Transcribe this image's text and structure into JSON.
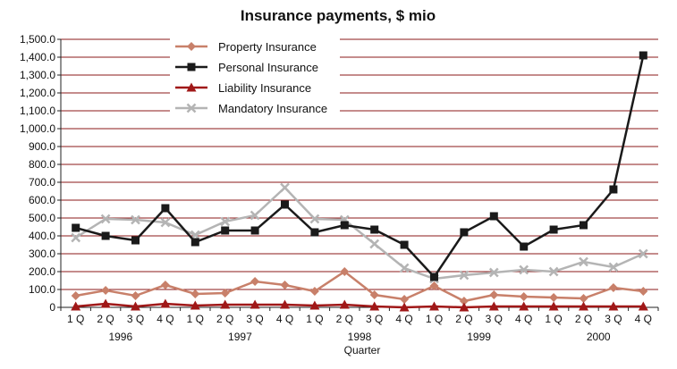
{
  "chart_data": {
    "type": "line",
    "title": "Insurance payments, $ mio",
    "xlabel": "Quarter",
    "ylabel": "",
    "ylim": [
      0,
      1500
    ],
    "yticks": [
      "0",
      "100.0",
      "200.0",
      "300.0",
      "400.0",
      "500.0",
      "600.0",
      "700.0",
      "800.0",
      "900.0",
      "1,000.0",
      "1,100.0",
      "1,200.0",
      "1,300.0",
      "1,400.0",
      "1,500.0"
    ],
    "categories": [
      "1 Q",
      "2 Q",
      "3 Q",
      "4 Q",
      "1 Q",
      "2 Q",
      "3 Q",
      "4 Q",
      "1 Q",
      "2 Q",
      "3 Q",
      "4 Q",
      "1 Q",
      "2 Q",
      "3 Q",
      "4 Q",
      "1 Q",
      "2 Q",
      "3 Q",
      "4 Q"
    ],
    "years": [
      "1996",
      "1997",
      "1998",
      "1999",
      "2000"
    ],
    "grid": true,
    "legend_position": "top-left",
    "series": [
      {
        "name": "Property Insurance",
        "color": "#c8806a",
        "marker": "diamond",
        "values": [
          65,
          95,
          65,
          125,
          75,
          80,
          145,
          125,
          90,
          200,
          70,
          45,
          120,
          35,
          70,
          60,
          55,
          50,
          110,
          90
        ]
      },
      {
        "name": "Personal Insurance",
        "color": "#1a1a1a",
        "marker": "square",
        "values": [
          445,
          400,
          375,
          555,
          365,
          430,
          430,
          575,
          420,
          460,
          435,
          350,
          170,
          420,
          510,
          340,
          435,
          460,
          660,
          1410
        ]
      },
      {
        "name": "Liability Insurance",
        "color": "#a01818",
        "marker": "triangle",
        "values": [
          5,
          20,
          5,
          20,
          10,
          15,
          15,
          15,
          10,
          15,
          5,
          0,
          5,
          0,
          5,
          5,
          5,
          5,
          5,
          5
        ]
      },
      {
        "name": "Mandatory Insurance",
        "color": "#b4b4b4",
        "marker": "x",
        "values": [
          390,
          495,
          490,
          475,
          405,
          480,
          515,
          670,
          495,
          490,
          355,
          220,
          160,
          180,
          195,
          210,
          200,
          255,
          225,
          300
        ]
      }
    ]
  }
}
